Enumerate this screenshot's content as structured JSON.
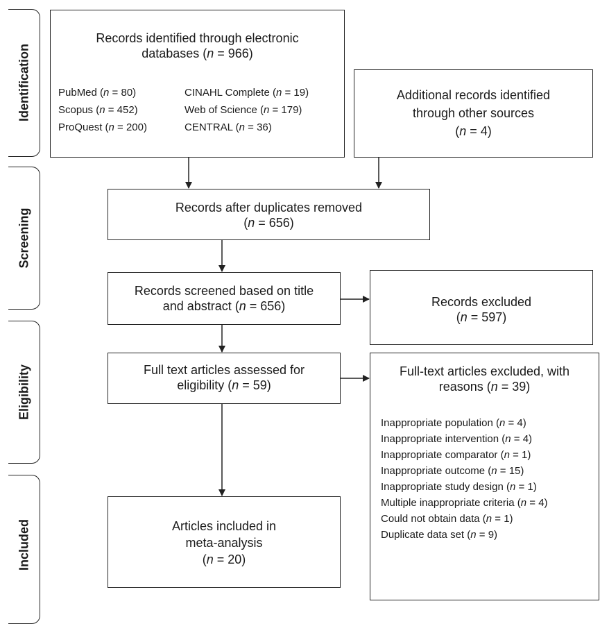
{
  "phases": [
    {
      "label": "Identification"
    },
    {
      "label": "Screening"
    },
    {
      "label": "Eligibility"
    },
    {
      "label": "Included"
    }
  ],
  "identification": {
    "databases_line1": "Records identified through electronic",
    "databases_line2": "databases (",
    "databases_n": "n",
    "databases_value": " = 966)",
    "sources": [
      {
        "name": "PubMed (",
        "n": "n",
        "value": " = 80)"
      },
      {
        "name": "CINAHL Complete (",
        "n": "n",
        "value": " = 19)"
      },
      {
        "name": "Scopus (",
        "n": "n",
        "value": " = 452)"
      },
      {
        "name": "Web of Science (",
        "n": "n",
        "value": " = 179)"
      },
      {
        "name": "ProQuest (",
        "n": "n",
        "value": " = 200)"
      },
      {
        "name": "CENTRAL (",
        "n": "n",
        "value": " = 36)"
      }
    ],
    "additional_line1": "Additional records identified",
    "additional_line2": "through other sources",
    "additional_n": "n",
    "additional_value": " = 4)",
    "open_paren": "("
  },
  "screening": {
    "dup_line1": "Records after duplicates removed",
    "dup_n": "n",
    "dup_value": " = 656)",
    "screened_line1": "Records screened based on title",
    "screened_line2": "and abstract (",
    "screened_n": "n",
    "screened_value": " = 656)",
    "excluded_line1": "Records excluded",
    "excluded_n": "n",
    "excluded_value": " = 597)",
    "open_paren": "("
  },
  "eligibility": {
    "fulltext_line1": "Full text articles assessed for",
    "fulltext_line2": "eligibility (",
    "fulltext_n": "n",
    "fulltext_value": " = 59)",
    "ft_excluded_line1": "Full-text articles excluded, with",
    "ft_excluded_line2": "reasons (",
    "ft_excluded_n": "n",
    "ft_excluded_value": " = 39)",
    "reasons": [
      {
        "text": "Inappropriate population (",
        "n": "n",
        "value": " = 4)"
      },
      {
        "text": "Inappropriate intervention (",
        "n": "n",
        "value": " = 4)"
      },
      {
        "text": "Inappropriate comparator (",
        "n": "n",
        "value": " = 1)"
      },
      {
        "text": "Inappropriate outcome (",
        "n": "n",
        "value": " = 15)"
      },
      {
        "text": "Inappropriate study design (",
        "n": "n",
        "value": " = 1)"
      },
      {
        "text": "Multiple inappropriate criteria (",
        "n": "n",
        "value": " = 4)"
      },
      {
        "text": "Could not obtain data (",
        "n": "n",
        "value": " = 1)"
      },
      {
        "text": "Duplicate data set (",
        "n": "n",
        "value": " = 9)"
      }
    ]
  },
  "included": {
    "line1": "Articles included in",
    "line2": "meta-analysis",
    "n": "n",
    "value": " = 20)",
    "open_paren": "("
  }
}
